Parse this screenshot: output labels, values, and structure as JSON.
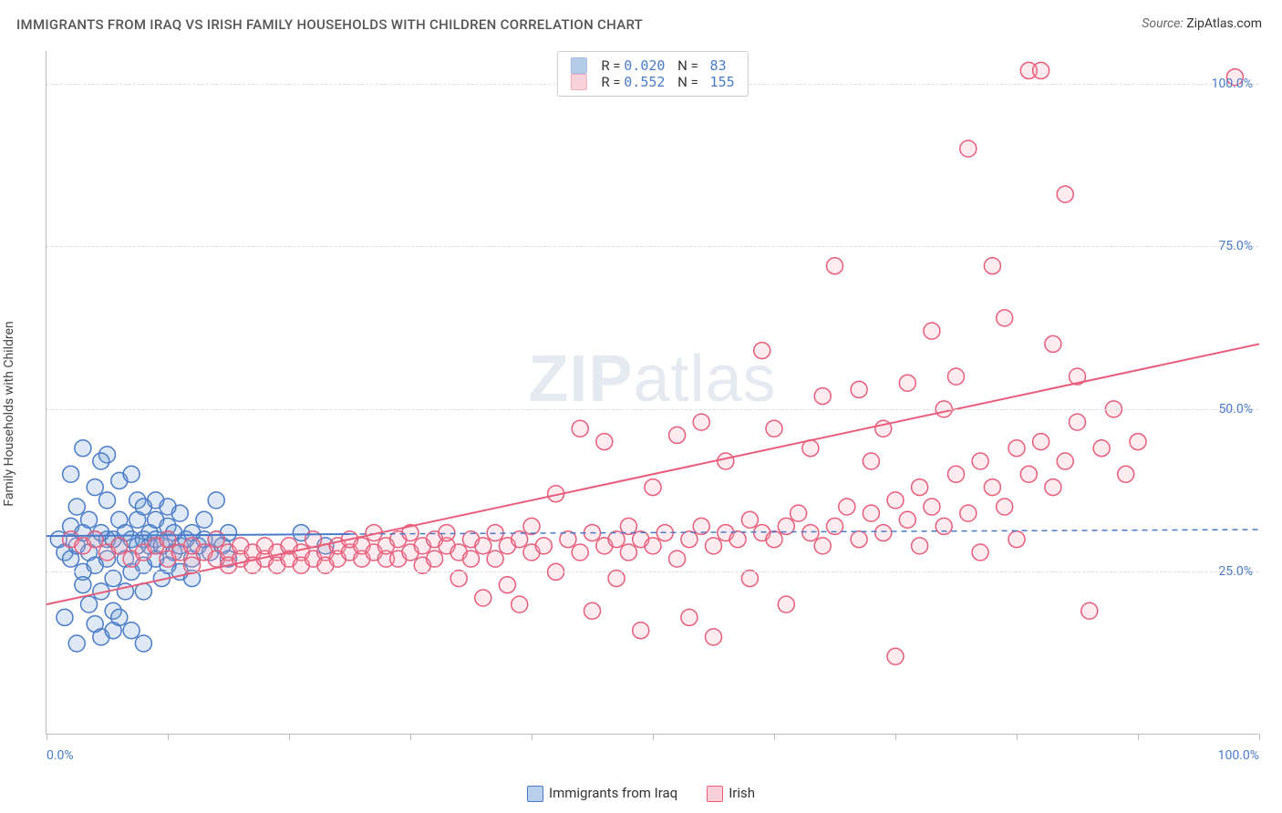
{
  "title": "IMMIGRANTS FROM IRAQ VS IRISH FAMILY HOUSEHOLDS WITH CHILDREN CORRELATION CHART",
  "source_label": "Source:",
  "source_value": "ZipAtlas.com",
  "watermark_zip": "ZIP",
  "watermark_atlas": "atlas",
  "ylabel": "Family Households with Children",
  "chart": {
    "type": "scatter",
    "background_color": "#ffffff",
    "grid_color": "#dddddd",
    "axis_color": "#bbbbbb",
    "tick_label_color": "#4a7bc8",
    "xlim": [
      0,
      100
    ],
    "ylim": [
      0,
      105
    ],
    "ytick_values": [
      25,
      50,
      75,
      100
    ],
    "ytick_labels": [
      "25.0%",
      "50.0%",
      "75.0%",
      "100.0%"
    ],
    "xtick_values": [
      0,
      10,
      20,
      30,
      40,
      50,
      60,
      70,
      80,
      90,
      100
    ],
    "xaxis_label_left": "0.0%",
    "xaxis_label_right": "100.0%",
    "marker_radius": 9,
    "marker_stroke_width": 1.5,
    "marker_fill_opacity": 0.22,
    "line_width_solid": 2,
    "line_width_dash": 1.5,
    "series": [
      {
        "name": "Immigrants from Iraq",
        "color": "#6b9bd1",
        "stroke": "#4a7bc8",
        "R": "0.020",
        "N": "83",
        "trend_solid": {
          "x1": 0,
          "y1": 30.5,
          "x2": 25,
          "y2": 30.8
        },
        "trend_dash": {
          "x1": 25,
          "y1": 30.8,
          "x2": 100,
          "y2": 31.5
        },
        "points": [
          [
            1,
            30
          ],
          [
            1.5,
            28
          ],
          [
            2,
            32
          ],
          [
            2,
            27
          ],
          [
            2.5,
            29
          ],
          [
            2.5,
            35
          ],
          [
            3,
            25
          ],
          [
            3,
            31
          ],
          [
            3,
            23
          ],
          [
            3.5,
            28
          ],
          [
            3.5,
            33
          ],
          [
            3.5,
            20
          ],
          [
            4,
            30
          ],
          [
            4,
            38
          ],
          [
            4,
            26
          ],
          [
            4,
            17
          ],
          [
            4.5,
            31
          ],
          [
            4.5,
            22
          ],
          [
            4.5,
            15
          ],
          [
            5,
            30
          ],
          [
            5,
            36
          ],
          [
            5,
            27
          ],
          [
            5,
            43
          ],
          [
            5.5,
            30
          ],
          [
            5.5,
            24
          ],
          [
            5.5,
            19
          ],
          [
            6,
            29
          ],
          [
            6,
            33
          ],
          [
            6,
            39
          ],
          [
            6.5,
            27
          ],
          [
            6.5,
            31
          ],
          [
            6.5,
            22
          ],
          [
            7,
            30
          ],
          [
            7,
            40
          ],
          [
            7,
            25
          ],
          [
            7.5,
            29
          ],
          [
            7.5,
            33
          ],
          [
            7.5,
            36
          ],
          [
            8,
            30
          ],
          [
            8,
            26
          ],
          [
            8,
            22
          ],
          [
            8,
            35
          ],
          [
            8.5,
            29
          ],
          [
            8.5,
            31
          ],
          [
            9,
            30
          ],
          [
            9,
            27
          ],
          [
            9,
            33
          ],
          [
            9.5,
            29
          ],
          [
            9.5,
            24
          ],
          [
            10,
            30
          ],
          [
            10,
            32
          ],
          [
            10,
            26
          ],
          [
            10.5,
            31
          ],
          [
            10.5,
            28
          ],
          [
            11,
            29
          ],
          [
            11,
            34
          ],
          [
            11.5,
            30
          ],
          [
            12,
            27
          ],
          [
            12,
            31
          ],
          [
            12.5,
            29
          ],
          [
            13,
            30
          ],
          [
            13,
            33
          ],
          [
            13.5,
            28
          ],
          [
            14,
            30
          ],
          [
            14,
            36
          ],
          [
            14.5,
            29
          ],
          [
            15,
            31
          ],
          [
            15,
            27
          ],
          [
            2,
            40
          ],
          [
            3,
            44
          ],
          [
            1.5,
            18
          ],
          [
            2.5,
            14
          ],
          [
            4.5,
            42
          ],
          [
            5.5,
            16
          ],
          [
            6,
            18
          ],
          [
            7,
            16
          ],
          [
            8,
            14
          ],
          [
            9,
            36
          ],
          [
            10,
            35
          ],
          [
            11,
            25
          ],
          [
            12,
            24
          ],
          [
            21,
            31
          ],
          [
            23,
            29
          ]
        ]
      },
      {
        "name": "Irish",
        "color": "#f4a6b8",
        "stroke": "#e85d7a",
        "R": "0.552",
        "N": "155",
        "trend_solid": {
          "x1": 0,
          "y1": 20,
          "x2": 100,
          "y2": 60
        },
        "trend_dash": null,
        "points": [
          [
            2,
            30
          ],
          [
            3,
            29
          ],
          [
            4,
            30
          ],
          [
            5,
            28
          ],
          [
            6,
            29
          ],
          [
            7,
            27
          ],
          [
            8,
            28
          ],
          [
            9,
            29
          ],
          [
            10,
            27
          ],
          [
            10,
            30
          ],
          [
            11,
            28
          ],
          [
            12,
            26
          ],
          [
            12,
            29
          ],
          [
            13,
            28
          ],
          [
            14,
            27
          ],
          [
            14,
            30
          ],
          [
            15,
            28
          ],
          [
            15,
            26
          ],
          [
            16,
            27
          ],
          [
            16,
            29
          ],
          [
            17,
            28
          ],
          [
            17,
            26
          ],
          [
            18,
            27
          ],
          [
            18,
            29
          ],
          [
            19,
            28
          ],
          [
            19,
            26
          ],
          [
            20,
            27
          ],
          [
            20,
            29
          ],
          [
            21,
            28
          ],
          [
            21,
            26
          ],
          [
            22,
            27
          ],
          [
            22,
            30
          ],
          [
            23,
            28
          ],
          [
            23,
            26
          ],
          [
            24,
            27
          ],
          [
            24,
            29
          ],
          [
            25,
            28
          ],
          [
            25,
            30
          ],
          [
            26,
            27
          ],
          [
            26,
            29
          ],
          [
            27,
            28
          ],
          [
            27,
            31
          ],
          [
            28,
            27
          ],
          [
            28,
            29
          ],
          [
            29,
            30
          ],
          [
            29,
            27
          ],
          [
            30,
            28
          ],
          [
            30,
            31
          ],
          [
            31,
            29
          ],
          [
            31,
            26
          ],
          [
            32,
            30
          ],
          [
            32,
            27
          ],
          [
            33,
            29
          ],
          [
            33,
            31
          ],
          [
            34,
            28
          ],
          [
            34,
            24
          ],
          [
            35,
            30
          ],
          [
            35,
            27
          ],
          [
            36,
            29
          ],
          [
            36,
            21
          ],
          [
            37,
            31
          ],
          [
            37,
            27
          ],
          [
            38,
            29
          ],
          [
            38,
            23
          ],
          [
            39,
            30
          ],
          [
            39,
            20
          ],
          [
            40,
            28
          ],
          [
            40,
            32
          ],
          [
            41,
            29
          ],
          [
            42,
            37
          ],
          [
            42,
            25
          ],
          [
            43,
            30
          ],
          [
            44,
            28
          ],
          [
            44,
            47
          ],
          [
            45,
            31
          ],
          [
            45,
            19
          ],
          [
            46,
            29
          ],
          [
            46,
            45
          ],
          [
            47,
            30
          ],
          [
            47,
            24
          ],
          [
            48,
            32
          ],
          [
            48,
            28
          ],
          [
            49,
            30
          ],
          [
            49,
            16
          ],
          [
            50,
            29
          ],
          [
            50,
            38
          ],
          [
            51,
            31
          ],
          [
            52,
            46
          ],
          [
            52,
            27
          ],
          [
            53,
            30
          ],
          [
            53,
            18
          ],
          [
            54,
            32
          ],
          [
            54,
            48
          ],
          [
            55,
            29
          ],
          [
            55,
            15
          ],
          [
            56,
            31
          ],
          [
            56,
            42
          ],
          [
            57,
            30
          ],
          [
            58,
            33
          ],
          [
            58,
            24
          ],
          [
            59,
            31
          ],
          [
            59,
            59
          ],
          [
            60,
            30
          ],
          [
            60,
            47
          ],
          [
            61,
            32
          ],
          [
            61,
            20
          ],
          [
            62,
            34
          ],
          [
            63,
            31
          ],
          [
            63,
            44
          ],
          [
            64,
            29
          ],
          [
            64,
            52
          ],
          [
            65,
            32
          ],
          [
            65,
            72
          ],
          [
            66,
            35
          ],
          [
            67,
            30
          ],
          [
            67,
            53
          ],
          [
            68,
            34
          ],
          [
            68,
            42
          ],
          [
            69,
            31
          ],
          [
            69,
            47
          ],
          [
            70,
            36
          ],
          [
            70,
            12
          ],
          [
            71,
            33
          ],
          [
            71,
            54
          ],
          [
            72,
            38
          ],
          [
            72,
            29
          ],
          [
            73,
            35
          ],
          [
            73,
            62
          ],
          [
            74,
            32
          ],
          [
            74,
            50
          ],
          [
            75,
            40
          ],
          [
            75,
            55
          ],
          [
            76,
            34
          ],
          [
            76,
            90
          ],
          [
            77,
            42
          ],
          [
            77,
            28
          ],
          [
            78,
            38
          ],
          [
            78,
            72
          ],
          [
            79,
            35
          ],
          [
            79,
            64
          ],
          [
            80,
            44
          ],
          [
            80,
            30
          ],
          [
            81,
            40
          ],
          [
            81,
            102
          ],
          [
            82,
            45
          ],
          [
            82,
            102
          ],
          [
            83,
            38
          ],
          [
            83,
            60
          ],
          [
            84,
            42
          ],
          [
            84,
            83
          ],
          [
            85,
            48
          ],
          [
            85,
            55
          ],
          [
            86,
            19
          ],
          [
            87,
            44
          ],
          [
            88,
            50
          ],
          [
            89,
            40
          ],
          [
            90,
            45
          ],
          [
            98,
            101
          ]
        ]
      }
    ]
  },
  "bottom_legend": [
    {
      "label": "Immigrants from Iraq",
      "fill": "#b8d0ec",
      "stroke": "#4a7bc8"
    },
    {
      "label": "Irish",
      "fill": "#f9d0da",
      "stroke": "#e85d7a"
    }
  ]
}
